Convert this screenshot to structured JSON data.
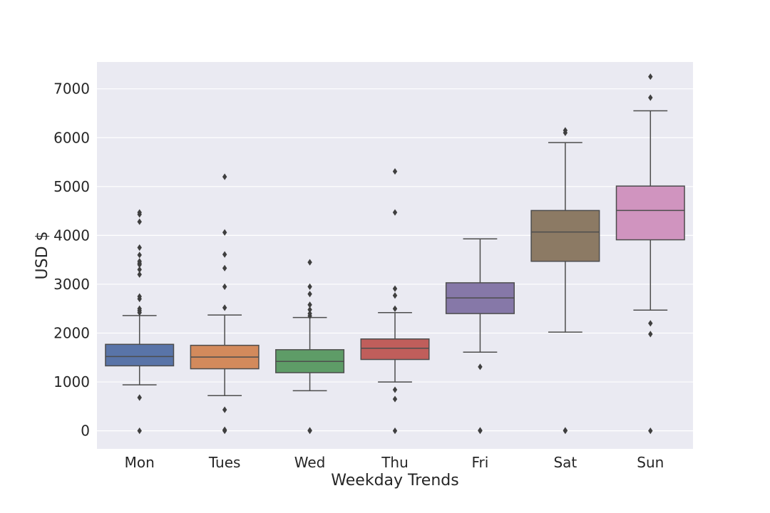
{
  "chart_data": {
    "type": "box",
    "title": "",
    "xlabel": "Weekday Trends",
    "ylabel": "USD $",
    "ylim": [
      -370,
      7550
    ],
    "yticks": [
      0,
      1000,
      2000,
      3000,
      4000,
      5000,
      6000,
      7000
    ],
    "grid": true,
    "colors": {
      "background": "#eaeaf2",
      "grid": "#ffffff",
      "line": "#4d4d4d",
      "text": "#262626"
    },
    "categories": [
      "Mon",
      "Tues",
      "Wed",
      "Thu",
      "Fri",
      "Sat",
      "Sun"
    ],
    "boxes": [
      {
        "category": "Mon",
        "color": "#5974a8",
        "whisker_low": 940,
        "q1": 1330,
        "median": 1520,
        "q3": 1770,
        "whisker_high": 2360,
        "outliers": [
          0,
          680,
          2420,
          2460,
          2500,
          2700,
          2750,
          3200,
          3300,
          3400,
          3430,
          3470,
          3600,
          3750,
          4280,
          4430,
          4470
        ]
      },
      {
        "category": "Tues",
        "color": "#d38a5c",
        "whisker_low": 720,
        "q1": 1270,
        "median": 1510,
        "q3": 1750,
        "whisker_high": 2370,
        "outliers": [
          0,
          20,
          430,
          2520,
          2950,
          3330,
          3610,
          4060,
          5200
        ]
      },
      {
        "category": "Wed",
        "color": "#5e9c67",
        "whisker_low": 820,
        "q1": 1190,
        "median": 1420,
        "q3": 1660,
        "whisker_high": 2320,
        "outliers": [
          0,
          10,
          2350,
          2400,
          2480,
          2580,
          2800,
          2950,
          3450
        ]
      },
      {
        "category": "Thu",
        "color": "#c05e5b",
        "whisker_low": 1000,
        "q1": 1460,
        "median": 1690,
        "q3": 1880,
        "whisker_high": 2420,
        "outliers": [
          0,
          650,
          840,
          2500,
          2770,
          2910,
          4470,
          5310
        ]
      },
      {
        "category": "Fri",
        "color": "#8678a8",
        "whisker_low": 1610,
        "q1": 2400,
        "median": 2720,
        "q3": 3030,
        "whisker_high": 3930,
        "outliers": [
          0,
          10,
          1310
        ]
      },
      {
        "category": "Sat",
        "color": "#8c7a64",
        "whisker_low": 2020,
        "q1": 3470,
        "median": 4070,
        "q3": 4510,
        "whisker_high": 5900,
        "outliers": [
          0,
          10,
          6100,
          6150
        ]
      },
      {
        "category": "Sun",
        "color": "#d094bf",
        "whisker_low": 2470,
        "q1": 3910,
        "median": 4510,
        "q3": 5010,
        "whisker_high": 6550,
        "outliers": [
          0,
          1980,
          2200,
          6820,
          7250
        ]
      }
    ]
  }
}
